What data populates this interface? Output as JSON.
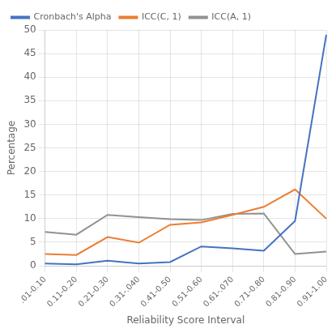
{
  "chart_data": {
    "type": "line",
    "categories": [
      ".01-0.10",
      "0.11-0.20",
      "0.21-0.30",
      "0.31-.040",
      "0.41-0.50",
      "0.51-0.60",
      "0.61-.070",
      "0.71-0.80",
      "0.81-0.90",
      "0.91-1.00"
    ],
    "series": [
      {
        "name": "Cronbach's Alpha",
        "color": "#4472C4",
        "values": [
          0.5,
          0.3,
          1.1,
          0.5,
          0.8,
          4.1,
          3.7,
          3.2,
          9.5,
          49.0
        ]
      },
      {
        "name": "ICC(C, 1)",
        "color": "#ED7D31",
        "values": [
          2.5,
          2.3,
          6.1,
          4.9,
          8.7,
          9.2,
          10.8,
          12.5,
          16.2,
          10.0
        ]
      },
      {
        "name": "ICC(A, 1)",
        "color": "#919191",
        "values": [
          7.2,
          6.6,
          10.8,
          10.3,
          9.9,
          9.7,
          11.0,
          11.1,
          2.5,
          3.0
        ]
      }
    ],
    "xlabel": "Reliability Score Interval",
    "ylabel": "Percentage",
    "ylim": [
      0,
      50
    ],
    "yticks": [
      0,
      5,
      10,
      15,
      20,
      25,
      30,
      35,
      40,
      45,
      50
    ],
    "grid": true,
    "legend": "upper left"
  }
}
